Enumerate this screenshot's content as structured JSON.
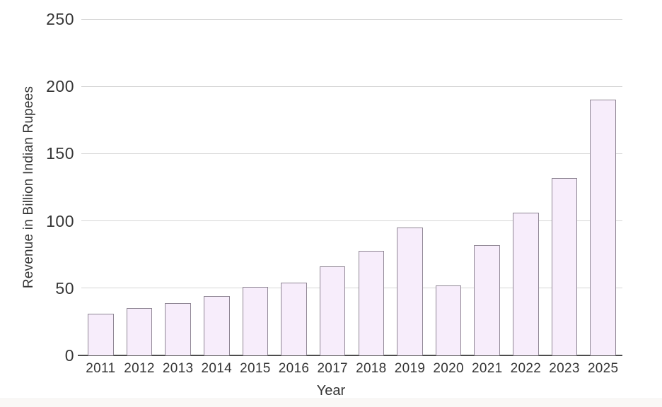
{
  "chart_data": {
    "type": "bar",
    "title": "",
    "xlabel": "Year",
    "ylabel": "Revenue in Billion Indian Rupees",
    "categories": [
      "2011",
      "2012",
      "2013",
      "2014",
      "2015",
      "2016",
      "2017",
      "2018",
      "2019",
      "2020",
      "2021",
      "2022",
      "2023",
      "2025"
    ],
    "values": [
      31,
      35,
      39,
      44,
      51,
      54,
      66,
      78,
      95,
      52,
      82,
      106,
      132,
      190
    ],
    "yticks": [
      0,
      50,
      100,
      150,
      200,
      250
    ],
    "ylim": [
      0,
      250
    ],
    "grid": true,
    "legend": "none",
    "colors": {
      "bar_fill": "#f7edfb",
      "bar_border": "#8f8694",
      "gridline": "#d6d6d6",
      "axis_line": "#4c4c4c",
      "text": "#363636",
      "background": "#ffffff",
      "footer_strip": "#faf8f6"
    }
  }
}
